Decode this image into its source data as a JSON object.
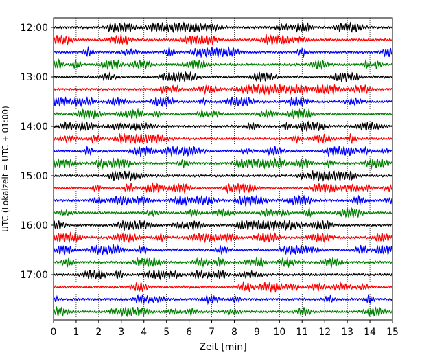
{
  "chart_data": {
    "type": "line",
    "title": "",
    "xlabel": "Zeit  [min]",
    "ylabel": "UTC (Lokalzeit = UTC + 01:00)",
    "xlim": [
      0,
      15
    ],
    "x_ticks": [
      0,
      1,
      2,
      3,
      4,
      5,
      6,
      7,
      8,
      9,
      10,
      11,
      12,
      13,
      14,
      15
    ],
    "x_tick_labels": [
      "0",
      "1",
      "2",
      "3",
      "4",
      "5",
      "6",
      "7",
      "8",
      "9",
      "10",
      "11",
      "12",
      "13",
      "14",
      "15"
    ],
    "grid": "vertical dotted",
    "trace_start": "12:00",
    "trace_minutes": 15,
    "trace_count": 24,
    "y_tick_labels": [
      "12:00",
      "13:00",
      "14:00",
      "15:00",
      "16:00",
      "17:00"
    ],
    "trace_colors": [
      "#000000",
      "#ff0000",
      "#0000ff",
      "#008000"
    ],
    "trace_amplitude_fraction": 0.38
  }
}
